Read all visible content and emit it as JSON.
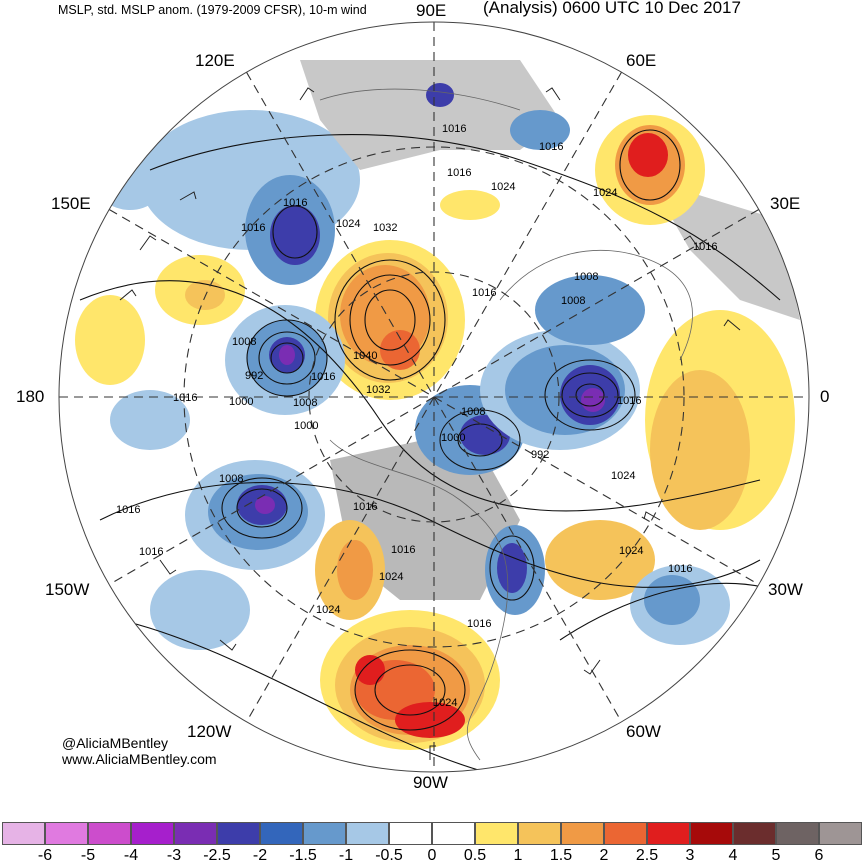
{
  "header": {
    "left_title": "MSLP, std. MSLP anom. (1979-2009 CFSR), 10-m wind",
    "right_title": "(Analysis) 0600 UTC 10 Dec 2017"
  },
  "longitude_labels": {
    "lon_90e": "90E",
    "lon_120e": "120E",
    "lon_60e": "60E",
    "lon_150e": "150E",
    "lon_30e": "30E",
    "lon_180": "180",
    "lon_0": "0",
    "lon_150w": "150W",
    "lon_30w": "30W",
    "lon_120w": "120W",
    "lon_60w": "60W",
    "lon_90w": "90W"
  },
  "isobar_labels": [
    "1016",
    "1016",
    "1024",
    "1016",
    "1024",
    "1016",
    "1032",
    "1024",
    "1016",
    "1016",
    "1008",
    "1008",
    "1040",
    "1032",
    "992",
    "1016",
    "1016",
    "1000",
    "1008",
    "1008",
    "1000",
    "1008",
    "992",
    "1016",
    "1000",
    "1008",
    "1016",
    "1024",
    "1016",
    "1024",
    "1024",
    "1016",
    "1016",
    "1016",
    "1024",
    "1016",
    "1016",
    "1024"
  ],
  "credit": {
    "line1": "@AliciaMBentley",
    "line2": "www.AliciaMBentley.com"
  },
  "colorbar": {
    "colors": [
      "#e6b3e6",
      "#e07ae0",
      "#cc4dcc",
      "#a61fcc",
      "#7a2db3",
      "#3d3daa",
      "#3366bb",
      "#6699cc",
      "#a6c8e6",
      "#ffffff",
      "#ffffff",
      "#ffe66b",
      "#f5c35a",
      "#f09a45",
      "#eb6633",
      "#e01e1e",
      "#a60a0a",
      "#6b2d2d",
      "#6e6363",
      "#9e9595"
    ],
    "ticks": [
      "-6",
      "-5",
      "-4",
      "-3",
      "-2.5",
      "-2",
      "-1.5",
      "-1",
      "-0.5",
      "0",
      "0.5",
      "1",
      "1.5",
      "2",
      "2.5",
      "3",
      "4",
      "5",
      "6"
    ]
  }
}
